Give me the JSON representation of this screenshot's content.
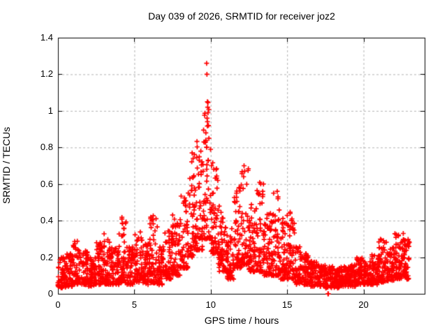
{
  "window": {
    "background_color": "#ffffff"
  },
  "chart_data": {
    "type": "scatter",
    "title": "Day 039 of 2026, SRMTID for receiver joz2",
    "xlabel": "GPS time / hours",
    "ylabel": "SRMTID / TECUs",
    "xlim": [
      0,
      24
    ],
    "ylim": [
      0,
      1.4
    ],
    "xticks": [
      0,
      5,
      10,
      15,
      20
    ],
    "xtick_labels": [
      "0",
      "5",
      "10",
      "15",
      "20"
    ],
    "yticks": [
      0,
      0.2,
      0.4,
      0.6,
      0.8,
      1.0,
      1.2,
      1.4
    ],
    "ytick_labels": [
      "0",
      "0.2",
      "0.4",
      "0.6",
      "0.8",
      "1",
      "1.2",
      "1.4"
    ],
    "grid": true,
    "grid_style": "dashed",
    "grid_color": "#b3b3b3",
    "axis_color": "#000000",
    "legend_position": "none",
    "marker": {
      "shape": "plus",
      "color": "#ff0000",
      "size": 7
    },
    "data_start_hour": 0.0,
    "data_end_hour": 23.05,
    "density_bin_width_hours": 0.5,
    "density_bins": [
      [
        0.0,
        0.03,
        0.2,
        55
      ],
      [
        0.5,
        0.04,
        0.22,
        55
      ],
      [
        1.0,
        0.05,
        0.3,
        55
      ],
      [
        1.5,
        0.05,
        0.24,
        55
      ],
      [
        2.0,
        0.04,
        0.2,
        55
      ],
      [
        2.5,
        0.05,
        0.28,
        55
      ],
      [
        3.0,
        0.05,
        0.33,
        55
      ],
      [
        3.5,
        0.05,
        0.26,
        55
      ],
      [
        4.0,
        0.06,
        0.44,
        55
      ],
      [
        4.5,
        0.05,
        0.26,
        55
      ],
      [
        5.0,
        0.06,
        0.34,
        55
      ],
      [
        5.5,
        0.05,
        0.28,
        55
      ],
      [
        6.0,
        0.06,
        0.44,
        55
      ],
      [
        6.5,
        0.05,
        0.26,
        55
      ],
      [
        7.0,
        0.08,
        0.36,
        55
      ],
      [
        7.5,
        0.1,
        0.46,
        55
      ],
      [
        8.0,
        0.14,
        0.55,
        55
      ],
      [
        8.5,
        0.2,
        0.77,
        55
      ],
      [
        9.0,
        0.24,
        0.86,
        55
      ],
      [
        9.5,
        0.3,
        1.1,
        55
      ],
      [
        10.0,
        0.22,
        0.72,
        55
      ],
      [
        10.5,
        0.12,
        0.48,
        55
      ],
      [
        11.0,
        0.08,
        0.36,
        55
      ],
      [
        11.5,
        0.14,
        0.6,
        55
      ],
      [
        12.0,
        0.16,
        0.71,
        55
      ],
      [
        12.5,
        0.12,
        0.52,
        55
      ],
      [
        13.0,
        0.12,
        0.61,
        55
      ],
      [
        13.5,
        0.1,
        0.46,
        55
      ],
      [
        14.0,
        0.1,
        0.56,
        55
      ],
      [
        14.5,
        0.08,
        0.42,
        55
      ],
      [
        15.0,
        0.08,
        0.45,
        55
      ],
      [
        15.5,
        0.05,
        0.26,
        55
      ],
      [
        16.0,
        0.05,
        0.22,
        55
      ],
      [
        16.5,
        0.04,
        0.18,
        55
      ],
      [
        17.0,
        0.04,
        0.16,
        55
      ],
      [
        17.5,
        0.03,
        0.15,
        55
      ],
      [
        18.0,
        0.03,
        0.14,
        55
      ],
      [
        18.5,
        0.04,
        0.15,
        55
      ],
      [
        19.0,
        0.04,
        0.16,
        55
      ],
      [
        19.5,
        0.05,
        0.2,
        55
      ],
      [
        20.0,
        0.05,
        0.18,
        55
      ],
      [
        20.5,
        0.05,
        0.22,
        55
      ],
      [
        21.0,
        0.06,
        0.3,
        55
      ],
      [
        21.5,
        0.07,
        0.26,
        55
      ],
      [
        22.0,
        0.08,
        0.33,
        55
      ],
      [
        22.5,
        0.08,
        0.3,
        60
      ]
    ],
    "peak_points": [
      [
        9.73,
        1.26
      ],
      [
        9.75,
        1.2
      ],
      [
        9.78,
        1.05
      ],
      [
        9.8,
        1.02
      ],
      [
        9.82,
        0.99
      ],
      [
        9.76,
        0.96
      ],
      [
        9.85,
        0.92
      ],
      [
        9.68,
        0.88
      ],
      [
        9.88,
        0.85
      ],
      [
        9.55,
        0.83
      ],
      [
        9.35,
        0.78
      ],
      [
        8.78,
        0.77
      ],
      [
        8.85,
        0.74
      ],
      [
        10.05,
        0.7
      ],
      [
        12.18,
        0.7
      ],
      [
        12.22,
        0.67
      ],
      [
        12.15,
        0.64
      ],
      [
        11.85,
        0.58
      ],
      [
        13.45,
        0.6
      ],
      [
        13.4,
        0.56
      ],
      [
        14.35,
        0.56
      ],
      [
        14.4,
        0.52
      ],
      [
        15.2,
        0.44
      ],
      [
        22.6,
        0.33
      ],
      [
        17.67,
        0.0
      ],
      [
        17.7,
        0.0
      ]
    ],
    "random_seed": 39
  }
}
